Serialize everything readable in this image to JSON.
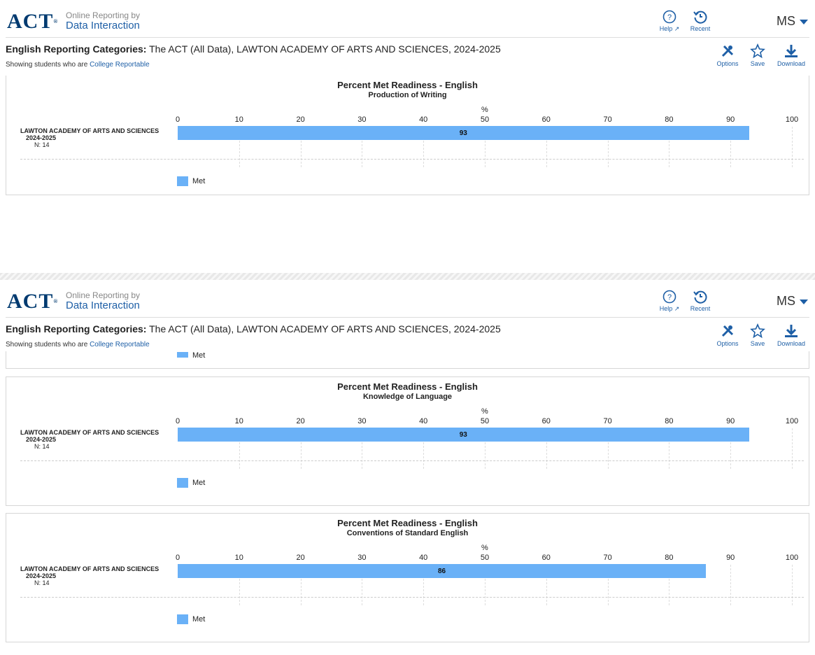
{
  "header": {
    "logo": "ACT",
    "brand_line1": "Online Reporting by",
    "brand_line2": "Data Interaction",
    "help_label": "Help",
    "recent_label": "Recent",
    "user_initials": "MS"
  },
  "report": {
    "title_bold": "English Reporting Categories:",
    "title_rest": " The ACT (All Data), LAWTON ACADEMY OF ARTS AND SCIENCES, 2024-2025",
    "subtitle_prefix": "Showing students who are ",
    "subtitle_link": "College Reportable"
  },
  "toolbar": {
    "options_label": "Options",
    "save_label": "Save",
    "download_label": "Download"
  },
  "colors": {
    "bar": "#6ab1f7",
    "accent": "#1e5fa6",
    "logo": "#003a70"
  },
  "chart_data": [
    {
      "type": "bar",
      "title": "Percent Met Readiness - English",
      "subtitle": "Production of Writing",
      "xlabel": "%",
      "xlim": [
        0,
        100
      ],
      "ticks": [
        "0",
        "10",
        "20",
        "30",
        "40",
        "50",
        "60",
        "70",
        "80",
        "90",
        "100"
      ],
      "categories": [
        "LAWTON ACADEMY OF ARTS AND SCIENCES"
      ],
      "year": "2024-2025",
      "n_label": "N: 14",
      "series": [
        {
          "name": "Met",
          "values": [
            93
          ]
        }
      ]
    },
    {
      "type": "bar",
      "title": "Percent Met Readiness - English",
      "subtitle": "Knowledge of Language",
      "xlabel": "%",
      "xlim": [
        0,
        100
      ],
      "ticks": [
        "0",
        "10",
        "20",
        "30",
        "40",
        "50",
        "60",
        "70",
        "80",
        "90",
        "100"
      ],
      "categories": [
        "LAWTON ACADEMY OF ARTS AND SCIENCES"
      ],
      "year": "2024-2025",
      "n_label": "N: 14",
      "series": [
        {
          "name": "Met",
          "values": [
            93
          ]
        }
      ]
    },
    {
      "type": "bar",
      "title": "Percent Met Readiness - English",
      "subtitle": "Conventions of Standard English",
      "xlabel": "%",
      "xlim": [
        0,
        100
      ],
      "ticks": [
        "0",
        "10",
        "20",
        "30",
        "40",
        "50",
        "60",
        "70",
        "80",
        "90",
        "100"
      ],
      "categories": [
        "LAWTON ACADEMY OF ARTS AND SCIENCES"
      ],
      "year": "2024-2025",
      "n_label": "N: 14",
      "series": [
        {
          "name": "Met",
          "values": [
            86
          ]
        }
      ]
    }
  ],
  "clipped_legend_label": "Met"
}
